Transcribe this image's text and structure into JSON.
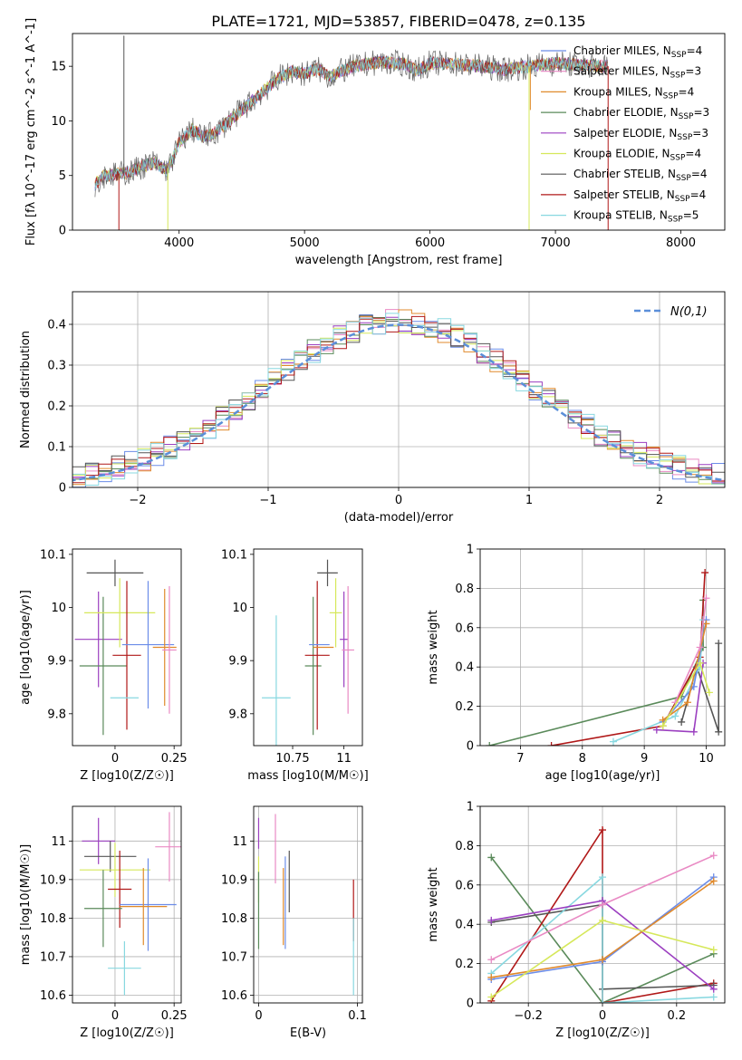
{
  "title": "PLATE=1721, MJD=53857, FIBERID=0478, z=0.135",
  "legend_spectrum": [
    {
      "label": "Chabrier MILES, N_SSP=4",
      "color": "#6b8ce8"
    },
    {
      "label": "Salpeter MILES, N_SSP=3",
      "color": "#e98ac4"
    },
    {
      "label": "Kroupa MILES, N_SSP=4",
      "color": "#e08a2c"
    },
    {
      "label": "Chabrier ELODIE, N_SSP=3",
      "color": "#5a8a5a"
    },
    {
      "label": "Salpeter ELODIE, N_SSP=3",
      "color": "#9b3fc0"
    },
    {
      "label": "Kroupa ELODIE, N_SSP=4",
      "color": "#d6e85a"
    },
    {
      "label": "Chabrier STELIB, N_SSP=4",
      "color": "#555555"
    },
    {
      "label": "Salpeter STELIB, N_SSP=4",
      "color": "#b01818"
    },
    {
      "label": "Kroupa STELIB, N_SSP=5",
      "color": "#88d8e0"
    }
  ],
  "legend_hist": "N(0,1)",
  "chart_data": [
    {
      "id": "spectrum",
      "type": "line",
      "xlabel": "wavelength [Angstrom, rest frame]",
      "ylabel": "Flux [fλ 10^-17 erg cm^-2 s^-1 A^-1]",
      "xlim": [
        3150,
        8350
      ],
      "ylim": [
        0,
        18
      ],
      "xticks": [
        4000,
        5000,
        6000,
        7000,
        8000
      ],
      "yticks": [
        0,
        5,
        10,
        15
      ],
      "profile": [
        [
          3330,
          4.2
        ],
        [
          3400,
          5.0
        ],
        [
          3500,
          5.1
        ],
        [
          3600,
          5.3
        ],
        [
          3700,
          5.8
        ],
        [
          3800,
          6.2
        ],
        [
          3900,
          5.5
        ],
        [
          3950,
          6.5
        ],
        [
          4000,
          8.0
        ],
        [
          4100,
          9.2
        ],
        [
          4200,
          8.5
        ],
        [
          4300,
          9.0
        ],
        [
          4400,
          10.0
        ],
        [
          4500,
          11.0
        ],
        [
          4600,
          12.0
        ],
        [
          4700,
          13.0
        ],
        [
          4800,
          14.0
        ],
        [
          4900,
          14.5
        ],
        [
          5000,
          14.3
        ],
        [
          5100,
          14.8
        ],
        [
          5200,
          14.0
        ],
        [
          5300,
          14.6
        ],
        [
          5400,
          15.0
        ],
        [
          5500,
          15.2
        ],
        [
          5600,
          15.4
        ],
        [
          5700,
          15.3
        ],
        [
          5800,
          15.2
        ],
        [
          5900,
          14.6
        ],
        [
          6000,
          15.3
        ],
        [
          6200,
          15.2
        ],
        [
          6400,
          15.0
        ],
        [
          6600,
          14.7
        ],
        [
          6800,
          15.0
        ],
        [
          7000,
          15.3
        ],
        [
          7200,
          15.1
        ],
        [
          7400,
          15.0
        ]
      ],
      "spike_colors": [
        "#555555",
        "#b01818",
        "#d6e85a",
        "#e08a2c",
        "#d6e85a",
        "#b01818"
      ],
      "spike_x": [
        3560,
        3520,
        3910,
        6800,
        6790,
        7420
      ],
      "spike_y": [
        17.8,
        0,
        0,
        11.0,
        0,
        0
      ]
    },
    {
      "id": "residual-histogram",
      "type": "bar",
      "xlabel": "(data-model)/error",
      "ylabel": "Normed distribution",
      "xlim": [
        -2.5,
        2.5
      ],
      "ylim": [
        0,
        0.48
      ],
      "xticks": [
        -2,
        -1,
        0,
        1,
        2
      ],
      "yticks": [
        0.0,
        0.1,
        0.2,
        0.3,
        0.4
      ],
      "gaussian_series": "N(0,1)"
    },
    {
      "id": "age-vs-metallicity",
      "type": "scatter",
      "xlabel": "Z [log10(Z/Z☉)]",
      "ylabel": "age [log10(age/yr)]",
      "xlim": [
        -0.18,
        0.28
      ],
      "ylim": [
        9.74,
        10.11
      ],
      "xticks": [
        0.0,
        0.25
      ],
      "yticks": [
        9.8,
        9.9,
        10.0,
        10.1
      ],
      "points": [
        {
          "color": "#555555",
          "x": 0.0,
          "xerr": 0.12,
          "y": 10.065,
          "yerr": 0.025
        },
        {
          "color": "#9b3fc0",
          "x": -0.07,
          "xerr": 0.1,
          "y": 9.94,
          "yerr": 0.09
        },
        {
          "color": "#5a8a5a",
          "x": -0.05,
          "xerr": 0.1,
          "y": 9.89,
          "yerr": 0.13
        },
        {
          "color": "#d6e85a",
          "x": 0.02,
          "xerr": 0.15,
          "y": 9.99,
          "yerr": 0.065
        },
        {
          "color": "#b01818",
          "x": 0.05,
          "xerr": 0.06,
          "y": 9.91,
          "yerr": 0.14
        },
        {
          "color": "#88d8e0",
          "x": 0.04,
          "xerr": 0.06,
          "y": 9.83,
          "yerr": 0.0
        },
        {
          "color": "#6b8ce8",
          "x": 0.14,
          "xerr": 0.11,
          "y": 9.93,
          "yerr": 0.12
        },
        {
          "color": "#e08a2c",
          "x": 0.21,
          "xerr": 0.05,
          "y": 9.925,
          "yerr": 0.11
        },
        {
          "color": "#e98ac4",
          "x": 0.23,
          "xerr": 0.03,
          "y": 9.92,
          "yerr": 0.12
        }
      ]
    },
    {
      "id": "age-vs-mass",
      "type": "scatter",
      "xlabel": "mass [log10(M/M☉)]",
      "ylabel": "",
      "xlim": [
        10.56,
        11.09
      ],
      "ylim": [
        9.74,
        10.11
      ],
      "xticks": [
        10.75,
        11.0
      ],
      "yticks": [
        9.8,
        9.9,
        10.0,
        10.1
      ],
      "points": [
        {
          "color": "#555555",
          "x": 10.92,
          "xerr": 0.05,
          "y": 10.065,
          "yerr": 0.025
        },
        {
          "color": "#9b3fc0",
          "x": 11.0,
          "xerr": 0.02,
          "y": 9.94,
          "yerr": 0.09
        },
        {
          "color": "#5a8a5a",
          "x": 10.85,
          "xerr": 0.04,
          "y": 9.89,
          "yerr": 0.13
        },
        {
          "color": "#d6e85a",
          "x": 10.96,
          "xerr": 0.03,
          "y": 9.99,
          "yerr": 0.065
        },
        {
          "color": "#b01818",
          "x": 10.87,
          "xerr": 0.06,
          "y": 9.91,
          "yerr": 0.14
        },
        {
          "color": "#88d8e0",
          "x": 10.67,
          "xerr": 0.07,
          "y": 9.83,
          "yerr": 0.155
        },
        {
          "color": "#6b8ce8",
          "x": 10.88,
          "xerr": 0.05,
          "y": 9.93,
          "yerr": 0.0
        },
        {
          "color": "#e08a2c",
          "x": 10.9,
          "xerr": 0.05,
          "y": 9.925,
          "yerr": 0.0
        },
        {
          "color": "#e98ac4",
          "x": 11.02,
          "xerr": 0.03,
          "y": 9.92,
          "yerr": 0.12
        }
      ]
    },
    {
      "id": "weight-vs-age",
      "type": "line",
      "xlabel": "age [log10(age/yr)]",
      "ylabel": "mass weight",
      "xlim": [
        6.35,
        10.3
      ],
      "ylim": [
        0,
        1.0
      ],
      "xticks": [
        7,
        8,
        9,
        10
      ],
      "yticks": [
        0.0,
        0.2,
        0.4,
        0.6,
        0.8,
        1.0
      ],
      "series": [
        {
          "color": "#5a8a5a",
          "x": [
            6.5,
            9.6,
            9.95,
            9.95
          ],
          "y": [
            0.0,
            0.25,
            0.5,
            0.74
          ]
        },
        {
          "color": "#b01818",
          "x": [
            7.5,
            9.3,
            9.9,
            9.98
          ],
          "y": [
            0.0,
            0.1,
            0.45,
            0.88
          ]
        },
        {
          "color": "#555555",
          "x": [
            9.6,
            9.85,
            10.2,
            10.2
          ],
          "y": [
            0.12,
            0.4,
            0.07,
            0.52
          ]
        },
        {
          "color": "#88d8e0",
          "x": [
            8.5,
            9.5,
            9.9,
            9.95
          ],
          "y": [
            0.02,
            0.15,
            0.4,
            0.64
          ]
        },
        {
          "color": "#9b3fc0",
          "x": [
            9.2,
            9.8,
            9.95
          ],
          "y": [
            0.08,
            0.07,
            0.42
          ]
        },
        {
          "color": "#6b8ce8",
          "x": [
            9.3,
            9.8,
            10.0
          ],
          "y": [
            0.12,
            0.3,
            0.64
          ]
        },
        {
          "color": "#e08a2c",
          "x": [
            9.3,
            9.7,
            10.0
          ],
          "y": [
            0.13,
            0.22,
            0.62
          ]
        },
        {
          "color": "#e98ac4",
          "x": [
            9.5,
            9.9,
            10.0
          ],
          "y": [
            0.22,
            0.5,
            0.75
          ]
        },
        {
          "color": "#d6e85a",
          "x": [
            9.3,
            9.9,
            10.05
          ],
          "y": [
            0.1,
            0.42,
            0.27
          ]
        }
      ]
    },
    {
      "id": "mass-vs-metallicity",
      "type": "scatter",
      "xlabel": "Z [log10(Z/Z☉)]",
      "ylabel": "mass [log10(M/M☉)]",
      "xlim": [
        -0.18,
        0.28
      ],
      "ylim": [
        10.58,
        11.09
      ],
      "xticks": [
        0.0,
        0.25
      ],
      "yticks": [
        10.6,
        10.7,
        10.8,
        10.9,
        11.0
      ],
      "points": [
        {
          "color": "#9b3fc0",
          "x": -0.07,
          "xerr": 0.07,
          "y": 11.0,
          "yerr": 0.06
        },
        {
          "color": "#555555",
          "x": -0.02,
          "xerr": 0.11,
          "y": 10.96,
          "yerr": 0.04
        },
        {
          "color": "#d6e85a",
          "x": 0.0,
          "xerr": 0.15,
          "y": 10.925,
          "yerr": 0.07
        },
        {
          "color": "#b01818",
          "x": 0.02,
          "xerr": 0.05,
          "y": 10.875,
          "yerr": 0.1
        },
        {
          "color": "#5a8a5a",
          "x": -0.05,
          "xerr": 0.08,
          "y": 10.825,
          "yerr": 0.1
        },
        {
          "color": "#88d8e0",
          "x": 0.04,
          "xerr": 0.07,
          "y": 10.67,
          "yerr": 0.07
        },
        {
          "color": "#6b8ce8",
          "x": 0.14,
          "xerr": 0.12,
          "y": 10.835,
          "yerr": 0.12
        },
        {
          "color": "#e08a2c",
          "x": 0.12,
          "xerr": 0.1,
          "y": 10.83,
          "yerr": 0.1
        },
        {
          "color": "#e98ac4",
          "x": 0.23,
          "xerr": 0.06,
          "y": 10.985,
          "yerr": 0.09
        }
      ]
    },
    {
      "id": "mass-vs-extinction",
      "type": "scatter",
      "xlabel": "E(B-V)",
      "ylabel": "",
      "xlim": [
        -0.005,
        0.105
      ],
      "ylim": [
        10.58,
        11.09
      ],
      "xticks": [
        0.0,
        0.1
      ],
      "yticks": [
        10.6,
        10.7,
        10.8,
        10.9,
        11.0
      ],
      "points": [
        {
          "color": "#9b3fc0",
          "x": 0.0,
          "xerr": 0.0,
          "y": 11.02,
          "yerr": 0.04
        },
        {
          "color": "#e98ac4",
          "x": 0.017,
          "xerr": 0.0,
          "y": 10.98,
          "yerr": 0.09
        },
        {
          "color": "#d6e85a",
          "x": 0.0,
          "xerr": 0.0,
          "y": 10.9,
          "yerr": 0.06
        },
        {
          "color": "#5a8a5a",
          "x": 0.0,
          "xerr": 0.0,
          "y": 10.82,
          "yerr": 0.1
        },
        {
          "color": "#555555",
          "x": 0.031,
          "xerr": 0.0,
          "y": 10.895,
          "yerr": 0.08
        },
        {
          "color": "#6b8ce8",
          "x": 0.027,
          "xerr": 0.0,
          "y": 10.84,
          "yerr": 0.12
        },
        {
          "color": "#e08a2c",
          "x": 0.025,
          "xerr": 0.0,
          "y": 10.83,
          "yerr": 0.1
        },
        {
          "color": "#b01818",
          "x": 0.096,
          "xerr": 0.0,
          "y": 10.82,
          "yerr": 0.08
        },
        {
          "color": "#88d8e0",
          "x": 0.096,
          "xerr": 0.0,
          "y": 10.7,
          "yerr": 0.1
        }
      ]
    },
    {
      "id": "weight-vs-metallicity",
      "type": "line",
      "xlabel": "Z [log10(Z/Z☉)]",
      "ylabel": "mass weight",
      "xlim": [
        -0.33,
        0.33
      ],
      "ylim": [
        0,
        1.0
      ],
      "xticks": [
        -0.2,
        0.0,
        0.2
      ],
      "yticks": [
        0.0,
        0.2,
        0.4,
        0.6,
        0.8,
        1.0
      ],
      "series": [
        {
          "color": "#5a8a5a",
          "x": [
            -0.3,
            0.0,
            0.3
          ],
          "y": [
            0.74,
            0.0,
            0.25
          ]
        },
        {
          "color": "#b01818",
          "x": [
            -0.3,
            0.0,
            0.0,
            0.3
          ],
          "y": [
            0.01,
            0.88,
            0.0,
            0.1
          ]
        },
        {
          "color": "#555555",
          "x": [
            -0.3,
            0.0,
            0.0,
            0.3
          ],
          "y": [
            0.41,
            0.5,
            0.07,
            0.09
          ]
        },
        {
          "color": "#88d8e0",
          "x": [
            -0.3,
            0.0,
            0.0,
            0.3
          ],
          "y": [
            0.15,
            0.64,
            0.0,
            0.03
          ]
        },
        {
          "color": "#9b3fc0",
          "x": [
            -0.3,
            0.0,
            0.3
          ],
          "y": [
            0.42,
            0.52,
            0.07
          ]
        },
        {
          "color": "#6b8ce8",
          "x": [
            -0.3,
            0.0,
            0.3
          ],
          "y": [
            0.12,
            0.21,
            0.64
          ]
        },
        {
          "color": "#e08a2c",
          "x": [
            -0.3,
            0.0,
            0.3
          ],
          "y": [
            0.13,
            0.22,
            0.62
          ]
        },
        {
          "color": "#e98ac4",
          "x": [
            -0.3,
            0.0,
            0.3
          ],
          "y": [
            0.22,
            0.5,
            0.75
          ]
        },
        {
          "color": "#d6e85a",
          "x": [
            -0.3,
            0.0,
            0.3
          ],
          "y": [
            0.03,
            0.42,
            0.27
          ]
        }
      ]
    }
  ]
}
